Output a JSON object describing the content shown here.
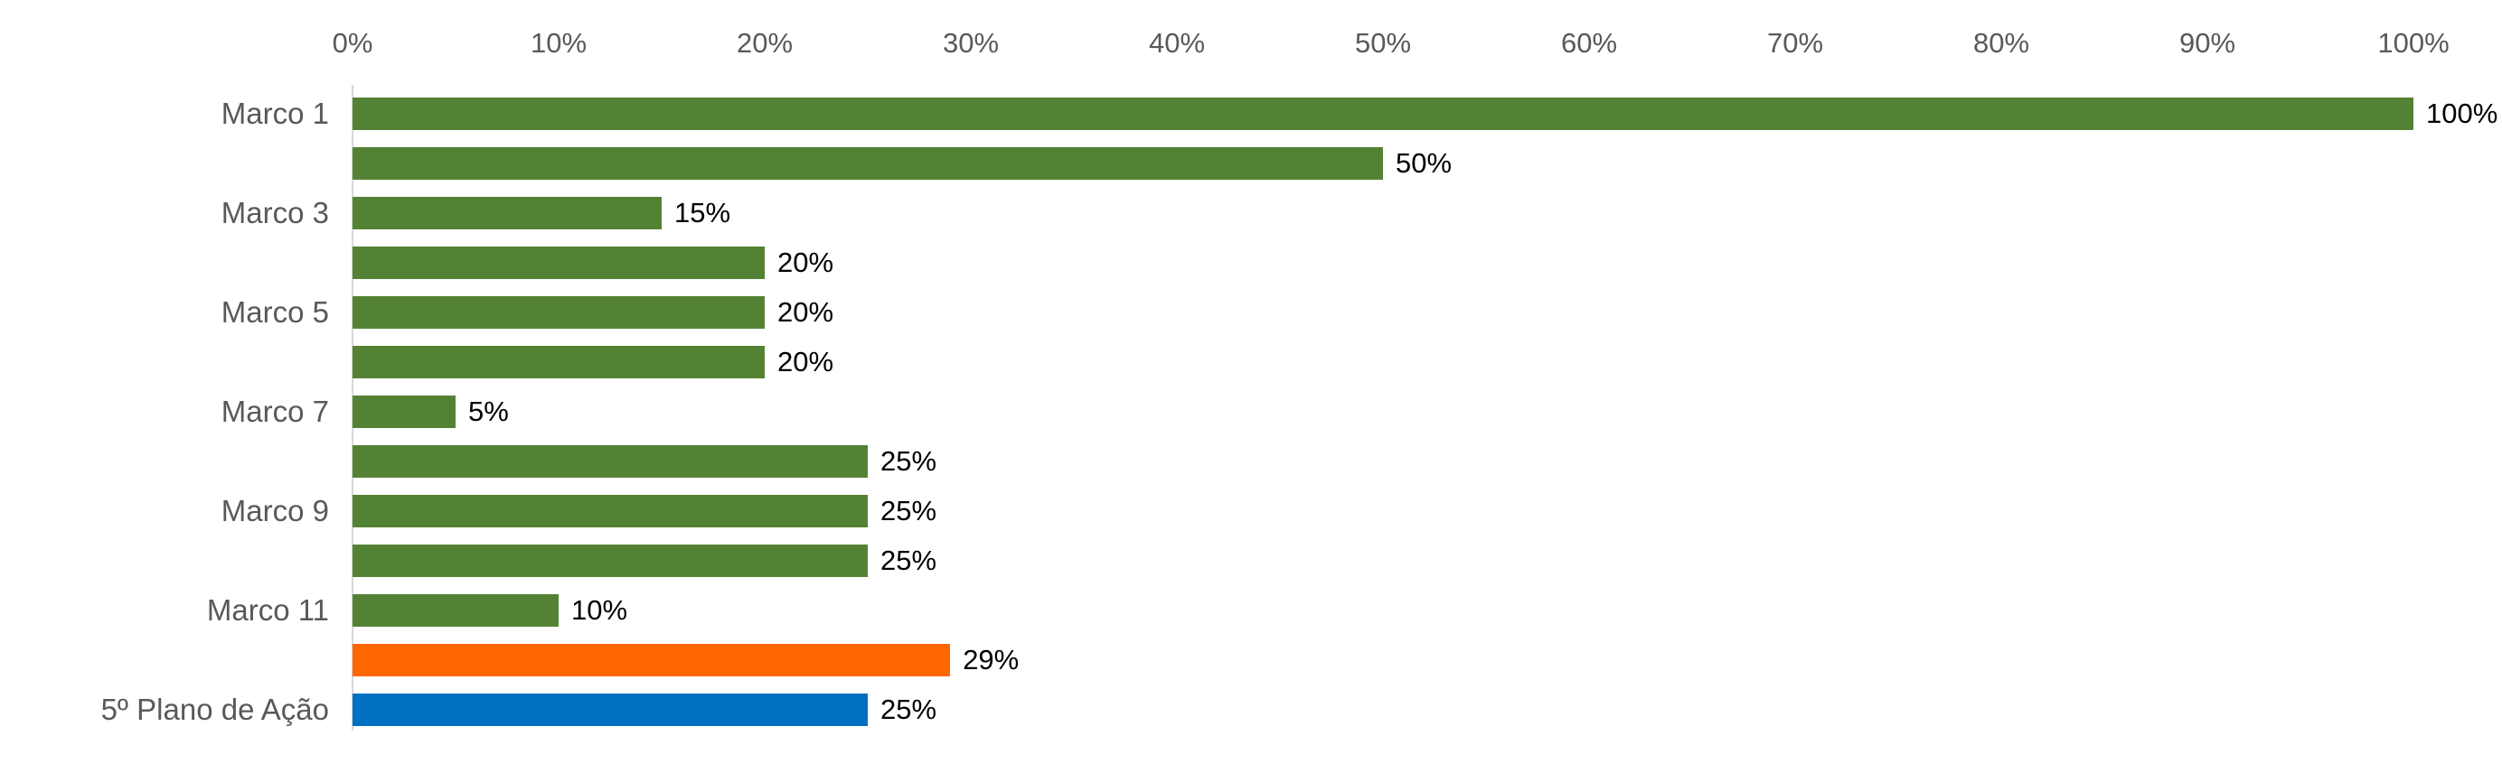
{
  "chart_data": {
    "type": "bar",
    "orientation": "horizontal",
    "title": "",
    "xlabel": "",
    "ylabel": "",
    "grid": false,
    "legend": false,
    "x_axis": {
      "min": 0,
      "max": 100,
      "tick_step": 10,
      "ticks": [
        "0%",
        "10%",
        "20%",
        "30%",
        "40%",
        "50%",
        "60%",
        "70%",
        "80%",
        "90%",
        "100%"
      ]
    },
    "colors": {
      "green": "#548235",
      "orange": "#FF6600",
      "blue": "#0070C0"
    },
    "axis_label_color": "#595959",
    "category_label_color": "#595959",
    "value_label_color": "#000000",
    "axis_line_color": "#D9D9D9",
    "bars": [
      {
        "label": "Marco 1",
        "value": 100,
        "value_label": "100%",
        "color_key": "green"
      },
      {
        "label": "",
        "value": 50,
        "value_label": "50%",
        "color_key": "green"
      },
      {
        "label": "Marco 3",
        "value": 15,
        "value_label": "15%",
        "color_key": "green"
      },
      {
        "label": "",
        "value": 20,
        "value_label": "20%",
        "color_key": "green"
      },
      {
        "label": "Marco 5",
        "value": 20,
        "value_label": "20%",
        "color_key": "green"
      },
      {
        "label": "",
        "value": 20,
        "value_label": "20%",
        "color_key": "green"
      },
      {
        "label": "Marco 7",
        "value": 5,
        "value_label": "5%",
        "color_key": "green"
      },
      {
        "label": "",
        "value": 25,
        "value_label": "25%",
        "color_key": "green"
      },
      {
        "label": "Marco 9",
        "value": 25,
        "value_label": "25%",
        "color_key": "green"
      },
      {
        "label": "",
        "value": 25,
        "value_label": "25%",
        "color_key": "green"
      },
      {
        "label": "Marco 11",
        "value": 10,
        "value_label": "10%",
        "color_key": "green"
      },
      {
        "label": "",
        "value": 29,
        "value_label": "29%",
        "color_key": "orange"
      },
      {
        "label": "5º Plano de Ação",
        "value": 25,
        "value_label": "25%",
        "color_key": "blue"
      }
    ]
  }
}
